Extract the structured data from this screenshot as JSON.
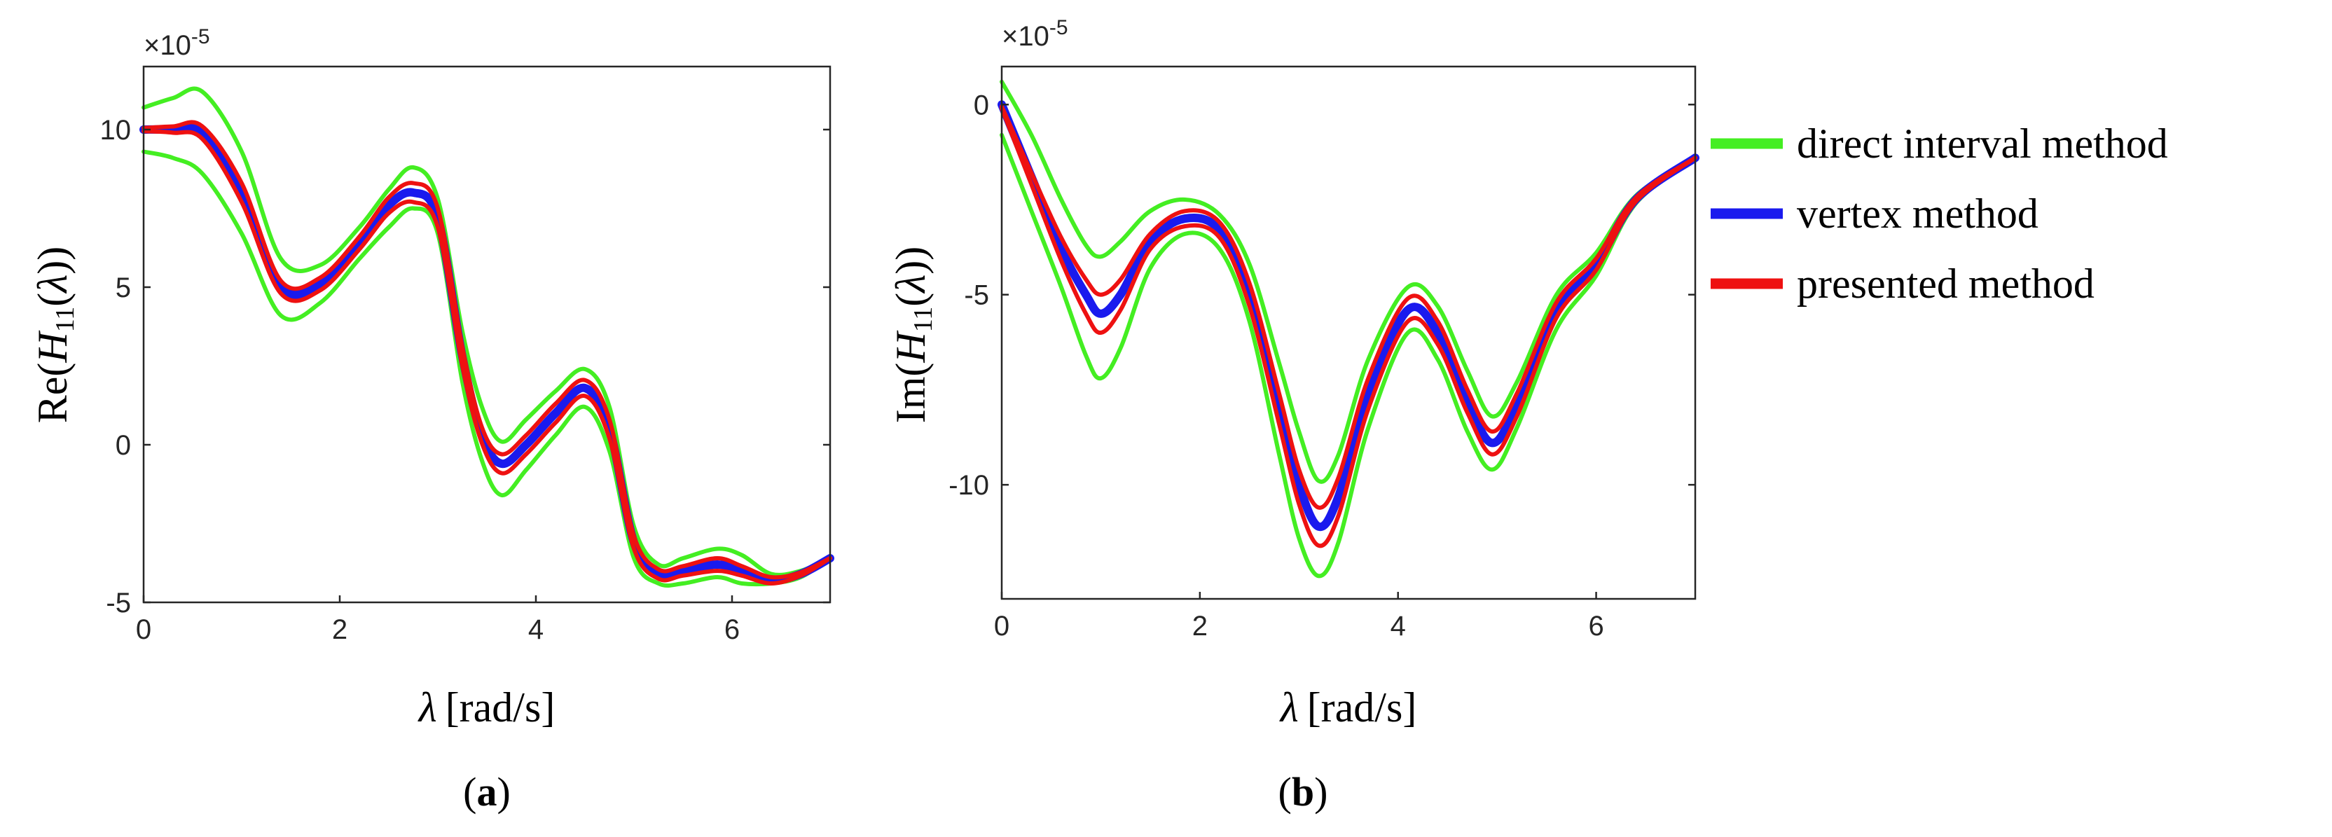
{
  "chart_data": [
    {
      "type": "line",
      "panel": "a",
      "panel_label": "a",
      "ylabel": {
        "pre": "Re(",
        "var": "H",
        "sub": "11",
        "mid": "(",
        "lam": "λ",
        "post": "))"
      },
      "xlabel": {
        "lam": "λ",
        "unit": "[rad/s]"
      },
      "exponent": {
        "times": "×10",
        "power": "-5"
      },
      "xlim": [
        0,
        7
      ],
      "ylim": [
        -5,
        12
      ],
      "xticks": [
        0,
        2,
        4,
        6
      ],
      "yticks": [
        -5,
        0,
        5,
        10
      ],
      "x": [
        0,
        0.3,
        0.6,
        1.0,
        1.4,
        1.8,
        2.2,
        2.5,
        2.75,
        3.0,
        3.25,
        3.45,
        3.65,
        3.9,
        4.2,
        4.5,
        4.75,
        5.0,
        5.25,
        5.5,
        5.85,
        6.1,
        6.4,
        6.7,
        7.0
      ],
      "series": [
        {
          "name": "direct interval method (upper)",
          "color": "#44ee22",
          "width": 6,
          "y": [
            10.7,
            11.0,
            11.2,
            9.3,
            5.9,
            5.7,
            6.9,
            8.1,
            8.8,
            7.8,
            3.6,
            1.2,
            0.1,
            0.8,
            1.7,
            2.4,
            1.2,
            -2.6,
            -3.8,
            -3.6,
            -3.3,
            -3.5,
            -4.1,
            -4.0,
            -3.6
          ]
        },
        {
          "name": "direct interval method (lower)",
          "color": "#44ee22",
          "width": 6,
          "y": [
            9.3,
            9.1,
            8.6,
            6.7,
            4.1,
            4.5,
            5.9,
            6.9,
            7.5,
            6.7,
            2.0,
            -0.5,
            -1.6,
            -0.8,
            0.3,
            1.2,
            -0.2,
            -3.6,
            -4.4,
            -4.4,
            -4.2,
            -4.4,
            -4.4,
            -4.2,
            -3.6
          ]
        },
        {
          "name": "vertex method",
          "color": "#1a1aee",
          "width": 12,
          "y": [
            10.0,
            10.0,
            9.9,
            8.0,
            5.0,
            5.1,
            6.4,
            7.6,
            8.0,
            7.2,
            2.8,
            0.3,
            -0.6,
            0.0,
            1.0,
            1.8,
            0.5,
            -3.1,
            -4.1,
            -4.0,
            -3.8,
            -4.0,
            -4.3,
            -4.1,
            -3.6
          ]
        },
        {
          "name": "presented method (upper)",
          "color": "#ee1111",
          "width": 6,
          "y": [
            10.05,
            10.1,
            10.1,
            8.3,
            5.2,
            5.3,
            6.6,
            7.85,
            8.3,
            7.5,
            3.1,
            0.55,
            -0.3,
            0.3,
            1.3,
            2.05,
            0.8,
            -2.9,
            -3.95,
            -3.85,
            -3.6,
            -3.85,
            -4.2,
            -4.05,
            -3.6
          ]
        },
        {
          "name": "presented method (lower)",
          "color": "#ee1111",
          "width": 6,
          "y": [
            9.95,
            9.9,
            9.7,
            7.7,
            4.8,
            4.9,
            6.2,
            7.35,
            7.7,
            6.9,
            2.5,
            0.05,
            -0.9,
            -0.3,
            0.7,
            1.55,
            0.2,
            -3.3,
            -4.25,
            -4.15,
            -4.0,
            -4.15,
            -4.4,
            -4.15,
            -3.6
          ]
        }
      ]
    },
    {
      "type": "line",
      "panel": "b",
      "panel_label": "b",
      "ylabel": {
        "pre": "Im(",
        "var": "H",
        "sub": "11",
        "mid": "(",
        "lam": "λ",
        "post": "))"
      },
      "xlabel": {
        "lam": "λ",
        "unit": "[rad/s]"
      },
      "exponent": {
        "times": "×10",
        "power": "-5"
      },
      "xlim": [
        0,
        7
      ],
      "ylim": [
        -13,
        1
      ],
      "xticks": [
        0,
        2,
        4,
        6
      ],
      "yticks": [
        -10,
        -5,
        0
      ],
      "x": [
        0,
        0.3,
        0.6,
        0.85,
        1.0,
        1.2,
        1.5,
        1.85,
        2.2,
        2.5,
        2.8,
        3.0,
        3.2,
        3.4,
        3.7,
        4.1,
        4.4,
        4.7,
        4.95,
        5.2,
        5.6,
        6.0,
        6.4,
        7.0
      ],
      "series": [
        {
          "name": "direct interval method (upper)",
          "color": "#44ee22",
          "width": 6,
          "y": [
            0.6,
            -0.8,
            -2.5,
            -3.7,
            -4.0,
            -3.6,
            -2.8,
            -2.5,
            -2.9,
            -4.2,
            -6.8,
            -8.6,
            -9.9,
            -9.2,
            -6.7,
            -4.8,
            -5.3,
            -7.0,
            -8.2,
            -7.3,
            -5.0,
            -3.9,
            -2.4,
            -1.4
          ]
        },
        {
          "name": "direct interval method (lower)",
          "color": "#44ee22",
          "width": 6,
          "y": [
            -0.8,
            -2.8,
            -4.8,
            -6.6,
            -7.2,
            -6.4,
            -4.3,
            -3.4,
            -3.8,
            -5.7,
            -9.2,
            -11.4,
            -12.4,
            -11.5,
            -8.5,
            -6.0,
            -6.7,
            -8.6,
            -9.6,
            -8.5,
            -5.9,
            -4.5,
            -2.6,
            -1.4
          ]
        },
        {
          "name": "vertex method",
          "color": "#1a1aee",
          "width": 12,
          "y": [
            0.0,
            -1.9,
            -3.8,
            -5.0,
            -5.5,
            -5.0,
            -3.6,
            -3.0,
            -3.3,
            -5.0,
            -8.0,
            -10.0,
            -11.1,
            -10.3,
            -7.6,
            -5.4,
            -6.0,
            -7.8,
            -8.9,
            -7.9,
            -5.4,
            -4.2,
            -2.5,
            -1.4
          ]
        },
        {
          "name": "presented method (upper)",
          "color": "#ee1111",
          "width": 6,
          "y": [
            -0.05,
            -1.8,
            -3.5,
            -4.6,
            -5.0,
            -4.6,
            -3.4,
            -2.8,
            -3.1,
            -4.7,
            -7.6,
            -9.6,
            -10.6,
            -9.8,
            -7.2,
            -5.1,
            -5.7,
            -7.5,
            -8.6,
            -7.6,
            -5.2,
            -4.05,
            -2.45,
            -1.4
          ]
        },
        {
          "name": "presented method (lower)",
          "color": "#ee1111",
          "width": 6,
          "y": [
            -0.1,
            -2.1,
            -4.1,
            -5.5,
            -6.0,
            -5.4,
            -3.8,
            -3.2,
            -3.5,
            -5.3,
            -8.4,
            -10.5,
            -11.6,
            -10.8,
            -8.0,
            -5.7,
            -6.3,
            -8.1,
            -9.2,
            -8.2,
            -5.6,
            -4.35,
            -2.55,
            -1.4
          ]
        }
      ]
    }
  ],
  "legend": [
    {
      "label": "direct interval method",
      "color": "#44ee22"
    },
    {
      "label": "vertex method",
      "color": "#1a1aee"
    },
    {
      "label": "presented method",
      "color": "#ee1111"
    }
  ]
}
